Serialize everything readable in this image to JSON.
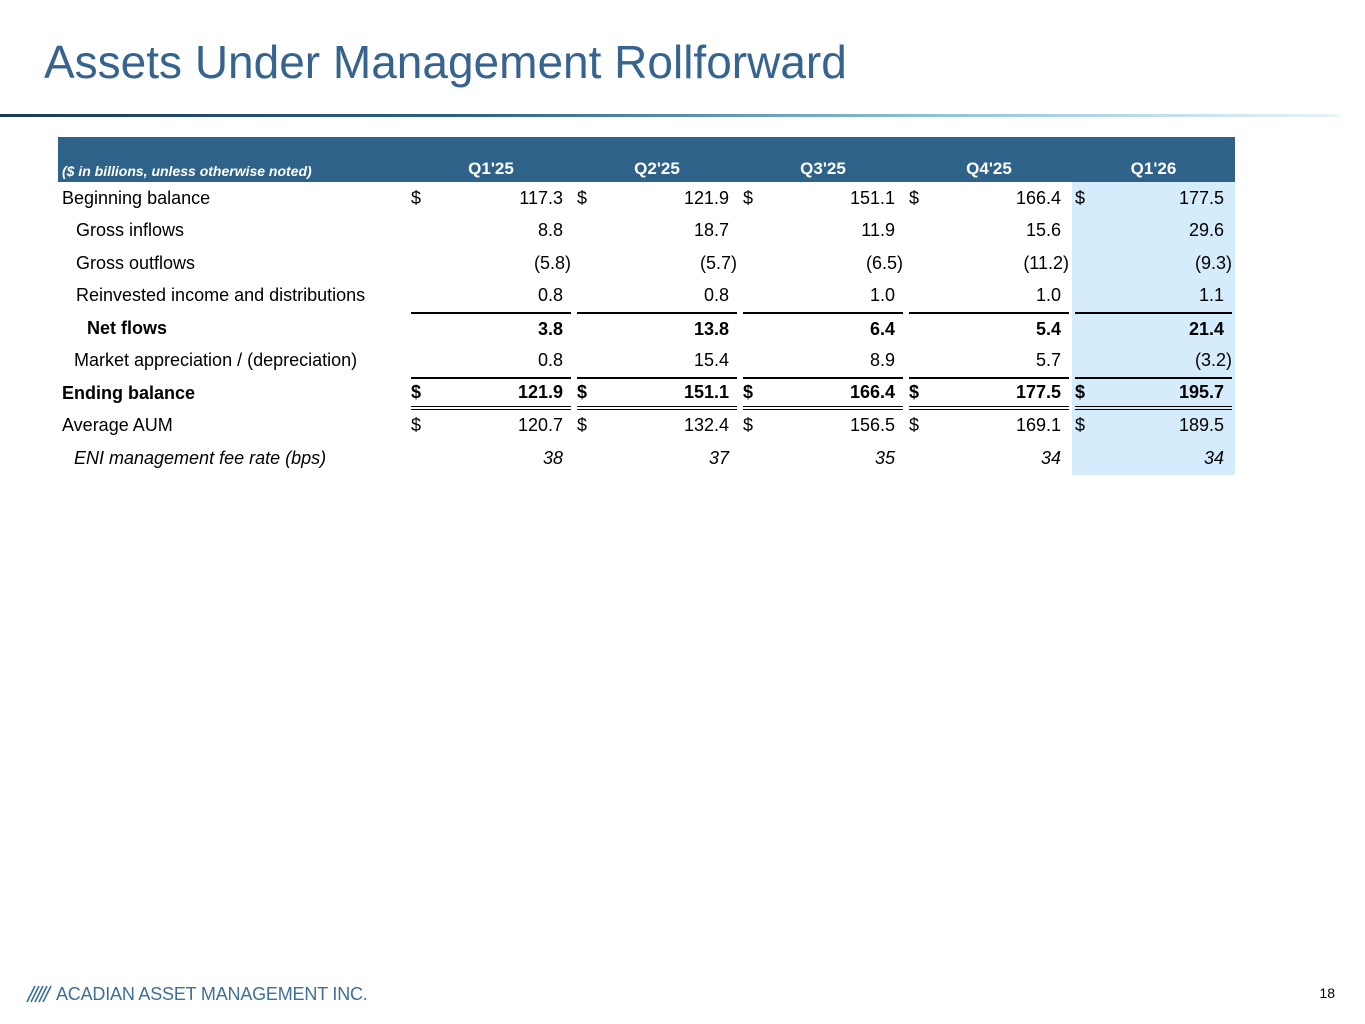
{
  "title": "Assets Under Management Rollforward",
  "colors": {
    "title": "#36648f",
    "header_bg": "#2f6289",
    "highlight": "#d4ecfb"
  },
  "table": {
    "units_label": "($ in billions, unless otherwise noted)",
    "columns": [
      "Q1'25",
      "Q2'25",
      "Q3'25",
      "Q4'25",
      "Q1'26"
    ],
    "rows": [
      {
        "label": "Beginning balance",
        "currency": "$",
        "values": [
          "117.3",
          "121.9",
          "151.1",
          "166.4",
          "177.5"
        ]
      },
      {
        "label": "Gross inflows",
        "currency": "",
        "values": [
          "8.8",
          "18.7",
          "11.9",
          "15.6",
          "29.6"
        ]
      },
      {
        "label": "Gross outflows",
        "currency": "",
        "values": [
          "(5.8)",
          "(5.7)",
          "(6.5)",
          "(11.2)",
          "(9.3)"
        ]
      },
      {
        "label": "Reinvested income and distributions",
        "currency": "",
        "values": [
          "0.8",
          "0.8",
          "1.0",
          "1.0",
          "1.1"
        ]
      },
      {
        "label": "Net flows",
        "currency": "",
        "values": [
          "3.8",
          "13.8",
          "6.4",
          "5.4",
          "21.4"
        ]
      },
      {
        "label": "Market appreciation / (depreciation)",
        "currency": "",
        "values": [
          "0.8",
          "15.4",
          "8.9",
          "5.7",
          "(3.2)"
        ]
      },
      {
        "label": "Ending balance",
        "currency": "$",
        "values": [
          "121.9",
          "151.1",
          "166.4",
          "177.5",
          "195.7"
        ]
      },
      {
        "label": "Average AUM",
        "currency": "$",
        "values": [
          "120.7",
          "132.4",
          "156.5",
          "169.1",
          "189.5"
        ]
      },
      {
        "label": "ENI management fee rate (bps)",
        "currency": "",
        "values": [
          "38",
          "37",
          "35",
          "34",
          "34"
        ]
      }
    ]
  },
  "footer": {
    "company": "ACADIAN ASSET MANAGEMENT INC.",
    "page_number": "18",
    "logo_icon": "acadian-logo-icon"
  }
}
